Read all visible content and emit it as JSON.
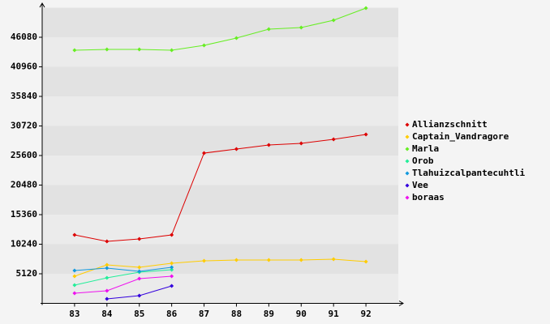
{
  "chart_data": {
    "type": "line",
    "x": [
      83,
      84,
      85,
      86,
      87,
      88,
      89,
      90,
      91,
      92
    ],
    "xlim": [
      82,
      93
    ],
    "xticks": [
      83,
      84,
      85,
      86,
      87,
      88,
      89,
      90,
      91,
      92
    ],
    "ylim": [
      0,
      51200
    ],
    "yticks": [
      5120,
      10240,
      15360,
      20480,
      25600,
      30720,
      35840,
      40960,
      46080
    ],
    "legend": "right",
    "series": [
      {
        "name": "Allianzschnitt",
        "color": "#dd0000",
        "values": [
          11853,
          10731,
          11152,
          11853,
          26022,
          26723,
          27425,
          27705,
          28406,
          29248
        ]
      },
      {
        "name": "Captain_Vandragore",
        "color": "#ffcc00",
        "values": [
          4699,
          6663,
          6242,
          6943,
          7364,
          7505,
          7505,
          7505,
          7645,
          7224
        ]
      },
      {
        "name": "Marla",
        "color": "#66ee22",
        "values": [
          43836,
          43976,
          43976,
          43836,
          44677,
          45940,
          47483,
          47764,
          49026,
          51130
        ]
      },
      {
        "name": "Orob",
        "color": "#22ee99",
        "values": [
          3156,
          4419,
          5400,
          5821,
          null,
          null,
          null,
          null,
          null,
          null
        ]
      },
      {
        "name": "Tlahuizcalpantecuhtli",
        "color": "#1199dd",
        "values": [
          5681,
          6102,
          5541,
          6242,
          null,
          null,
          null,
          null,
          null,
          null
        ]
      },
      {
        "name": "Vee",
        "color": "#3300dd",
        "values": [
          null,
          772,
          1333,
          3016,
          null,
          null,
          null,
          null,
          null,
          null
        ]
      },
      {
        "name": "boraas",
        "color": "#ee11ee",
        "values": [
          1753,
          2174,
          4278,
          4699,
          null,
          null,
          null,
          null,
          null,
          null
        ]
      }
    ]
  }
}
